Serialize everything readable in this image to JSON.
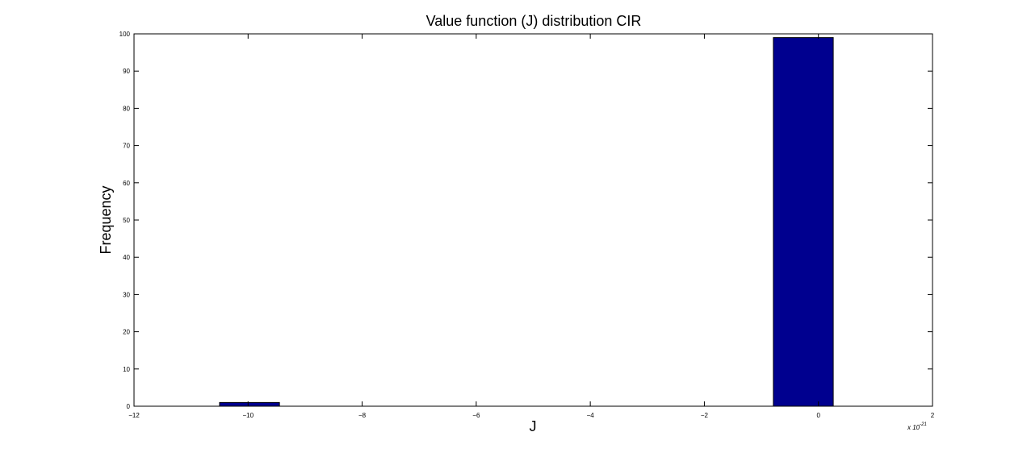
{
  "chart_data": {
    "type": "bar",
    "title": "Value function (J) distribution CIR",
    "xlabel": "J",
    "ylabel": "Frequency",
    "x_multiplier_label": "x 10",
    "x_multiplier_exponent": "-21",
    "xlim": [
      -12,
      2
    ],
    "ylim": [
      0,
      100
    ],
    "x_ticks": [
      -12,
      -10,
      -8,
      -6,
      -4,
      -2,
      0,
      2
    ],
    "x_tick_labels": [
      "−12",
      "−10",
      "−8",
      "−6",
      "−4",
      "−2",
      "0",
      "2"
    ],
    "y_ticks": [
      0,
      10,
      20,
      30,
      40,
      50,
      60,
      70,
      80,
      90,
      100
    ],
    "y_tick_labels": [
      "0",
      "10",
      "20",
      "30",
      "40",
      "50",
      "60",
      "70",
      "80",
      "90",
      "100"
    ],
    "grid": false,
    "bars": [
      {
        "x_start": -10.5,
        "x_end": -9.45,
        "value": 1
      },
      {
        "x_start": -0.79,
        "x_end": 0.26,
        "value": 99
      }
    ],
    "bar_color": "#00008f",
    "bar_edge_color": "#000000"
  }
}
